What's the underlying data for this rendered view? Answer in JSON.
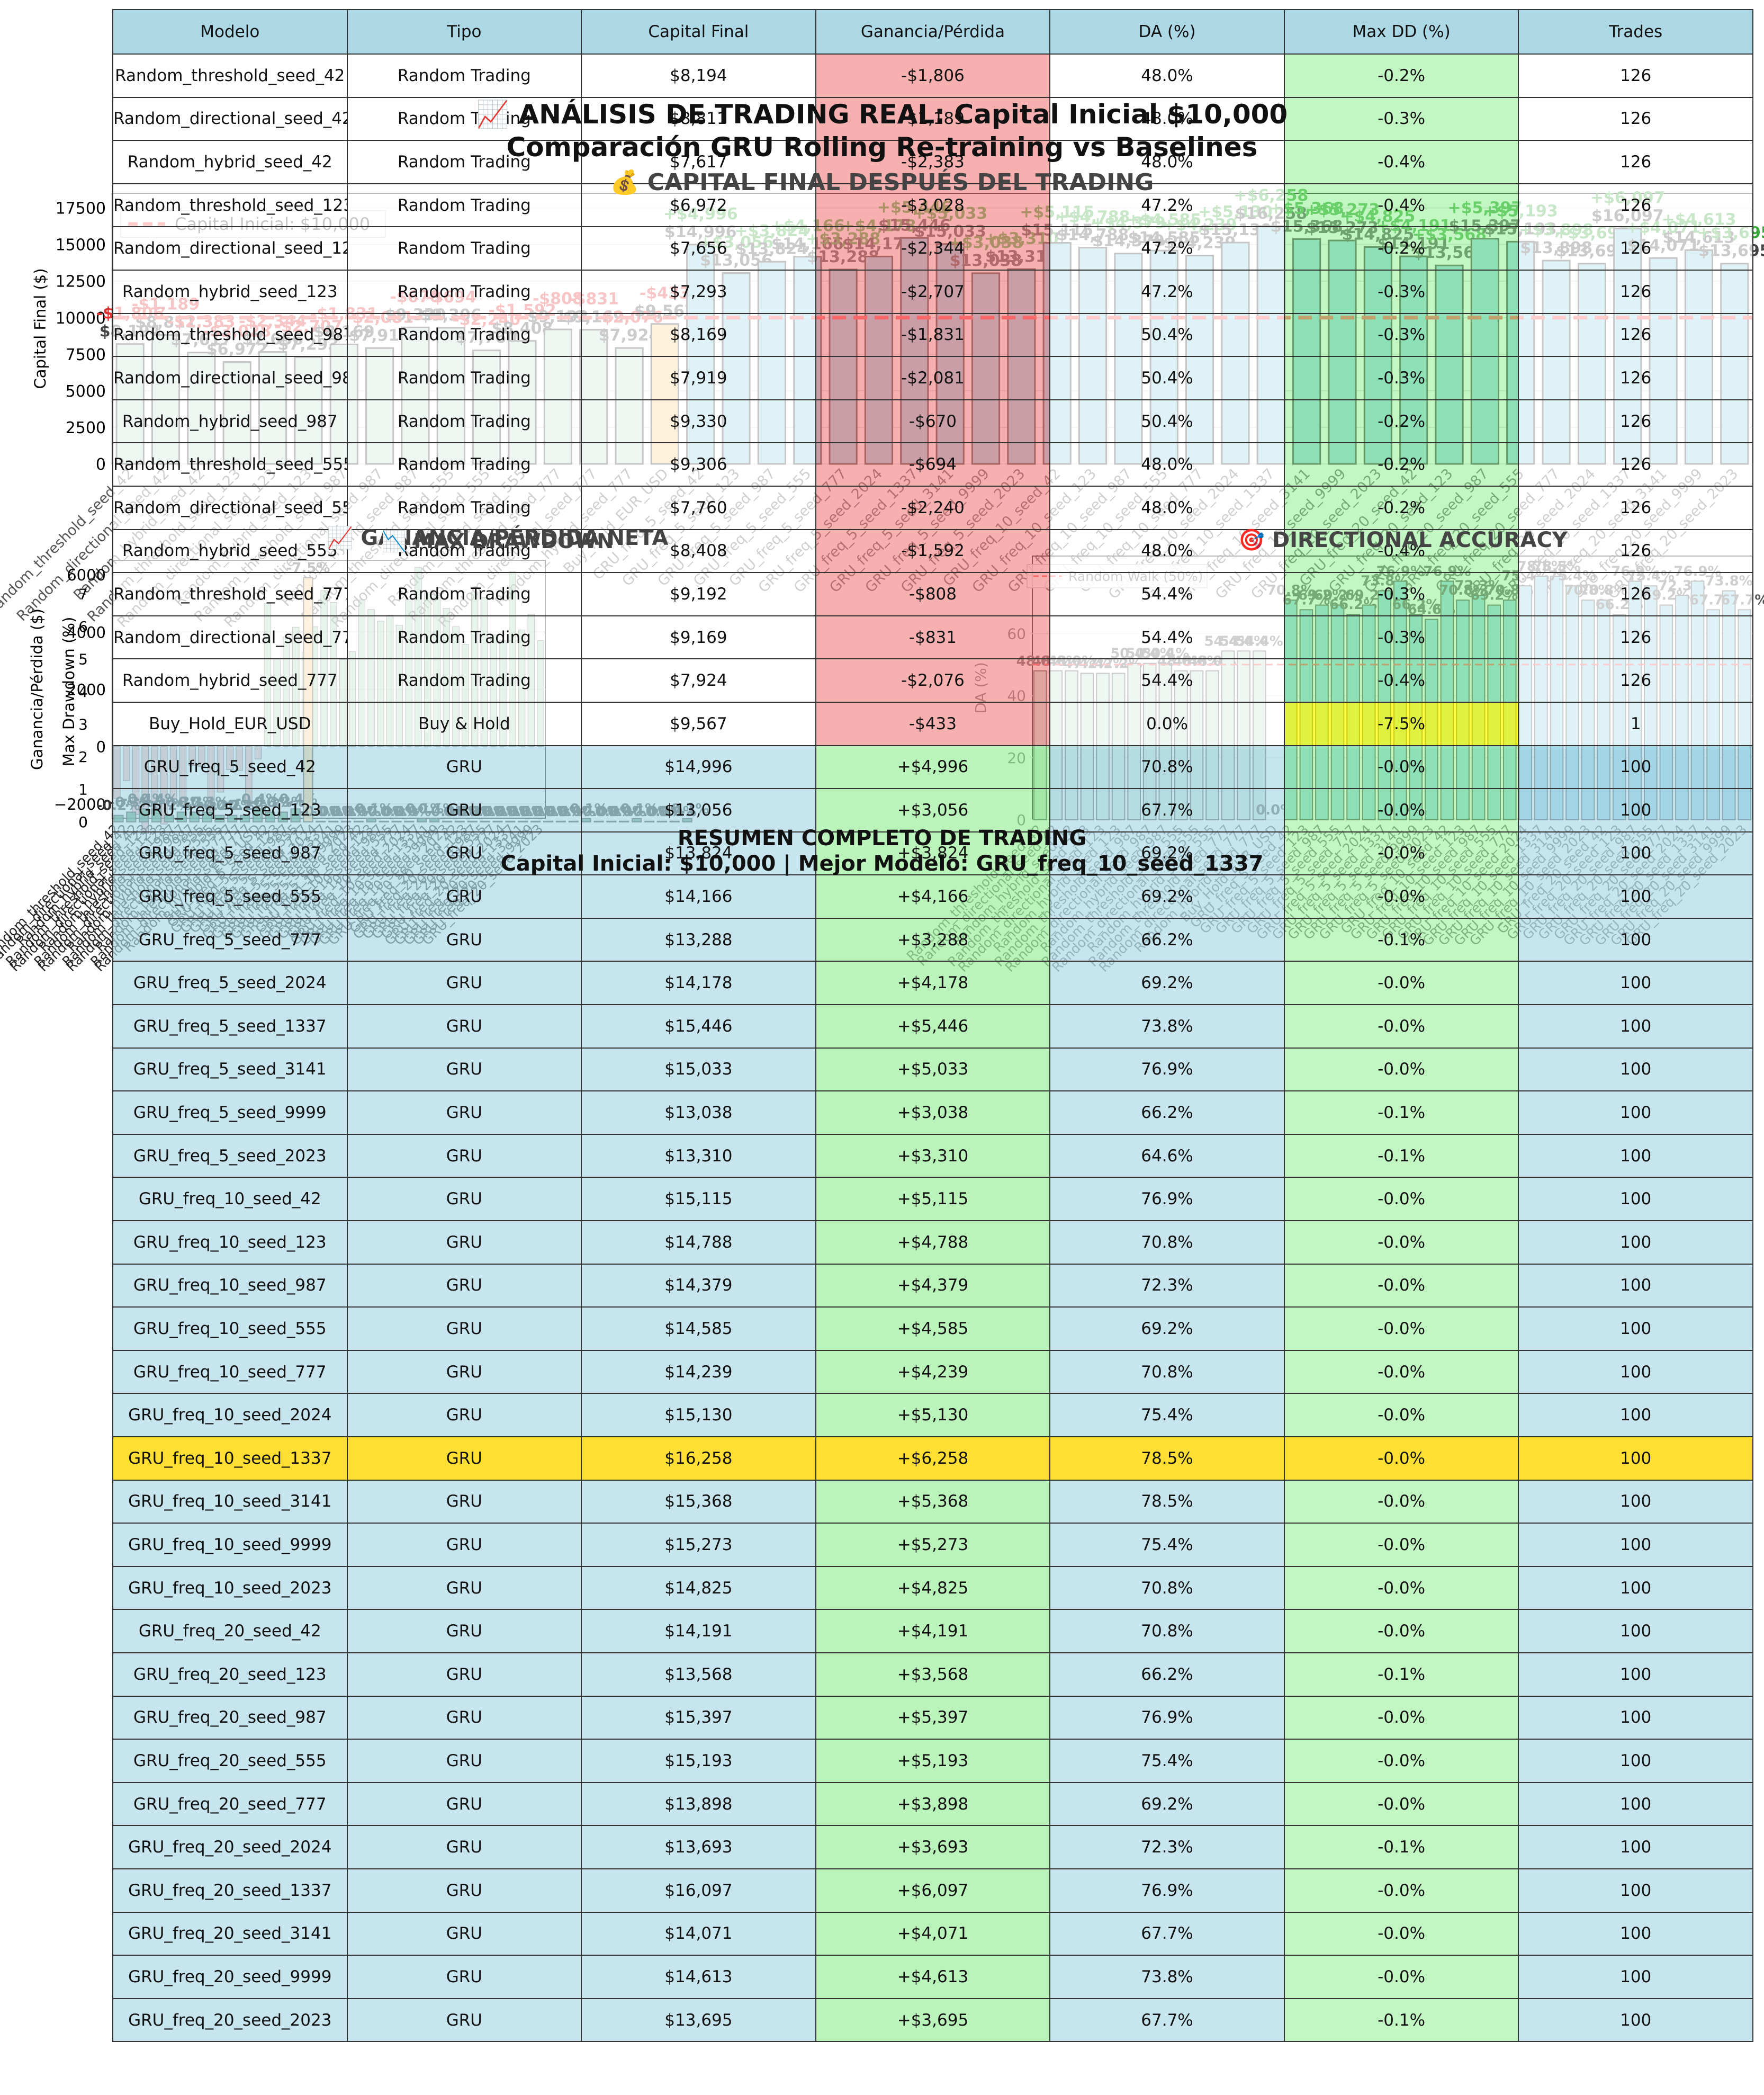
{
  "figure": {
    "title_line1": "📈 ANÁLISIS DE TRADING REAL: Capital Inicial $10,000",
    "title_line2": "Comparación GRU Rolling Re-training vs Baselines",
    "capital_title": "💰 CAPITAL FINAL DESPUÉS DEL TRADING",
    "gain_title": "📈 GANANCIA/PÉRDIDA NETA",
    "dd_title": "📉 MAX DRAWDOWN",
    "da_title": "🎯 DIRECTIONAL ACCURACY",
    "summary_title": "RESUMEN COMPLETO DE TRADING",
    "summary_subtitle": "Capital Inicial: $10,000 | Mejor Modelo: GRU_freq_10_seed_1337"
  },
  "colors": {
    "random": "#c7e3d4",
    "buyhold": "#ffcc80",
    "gru": "#8ccfe6",
    "header": "#add8e6",
    "loss_cell": "#f08080",
    "gain_cell": "#90ee90",
    "best_row": "#ffdf33",
    "capital_line": "#ff4444",
    "gain_bar": "#2e8b57"
  },
  "table": {
    "headers": [
      "Modelo",
      "Tipo",
      "Capital Final",
      "Ganancia/Pérdida",
      "DA (%)",
      "Max DD (%)",
      "Trades"
    ],
    "rows": [
      [
        "Random_threshold_seed_42",
        "Random Trading",
        "$8,194",
        "-$1,806",
        "48.0%",
        "-0.2%",
        "126"
      ],
      [
        "Random_directional_seed_42",
        "Random Trading",
        "$8,811",
        "-$1,189",
        "48.0%",
        "-0.3%",
        "126"
      ],
      [
        "Random_hybrid_seed_42",
        "Random Trading",
        "$7,617",
        "-$2,383",
        "48.0%",
        "-0.4%",
        "126"
      ],
      [
        "Random_threshold_seed_123",
        "Random Trading",
        "$6,972",
        "-$3,028",
        "47.2%",
        "-0.4%",
        "126"
      ],
      [
        "Random_directional_seed_123",
        "Random Trading",
        "$7,656",
        "-$2,344",
        "47.2%",
        "-0.2%",
        "126"
      ],
      [
        "Random_hybrid_seed_123",
        "Random Trading",
        "$7,293",
        "-$2,707",
        "47.2%",
        "-0.3%",
        "126"
      ],
      [
        "Random_threshold_seed_987",
        "Random Trading",
        "$8,169",
        "-$1,831",
        "50.4%",
        "-0.3%",
        "126"
      ],
      [
        "Random_directional_seed_987",
        "Random Trading",
        "$7,919",
        "-$2,081",
        "50.4%",
        "-0.3%",
        "126"
      ],
      [
        "Random_hybrid_seed_987",
        "Random Trading",
        "$9,330",
        "-$670",
        "50.4%",
        "-0.2%",
        "126"
      ],
      [
        "Random_threshold_seed_555",
        "Random Trading",
        "$9,306",
        "-$694",
        "48.0%",
        "-0.2%",
        "126"
      ],
      [
        "Random_directional_seed_555",
        "Random Trading",
        "$7,760",
        "-$2,240",
        "48.0%",
        "-0.2%",
        "126"
      ],
      [
        "Random_hybrid_seed_555",
        "Random Trading",
        "$8,408",
        "-$1,592",
        "48.0%",
        "-0.4%",
        "126"
      ],
      [
        "Random_threshold_seed_777",
        "Random Trading",
        "$9,192",
        "-$808",
        "54.4%",
        "-0.3%",
        "126"
      ],
      [
        "Random_directional_seed_777",
        "Random Trading",
        "$9,169",
        "-$831",
        "54.4%",
        "-0.3%",
        "126"
      ],
      [
        "Random_hybrid_seed_777",
        "Random Trading",
        "$7,924",
        "-$2,076",
        "54.4%",
        "-0.4%",
        "126"
      ],
      [
        "Buy_Hold_EUR_USD",
        "Buy & Hold",
        "$9,567",
        "-$433",
        "0.0%",
        "-7.5%",
        "1"
      ],
      [
        "GRU_freq_5_seed_42",
        "GRU",
        "$14,996",
        "+$4,996",
        "70.8%",
        "-0.0%",
        "100"
      ],
      [
        "GRU_freq_5_seed_123",
        "GRU",
        "$13,056",
        "+$3,056",
        "67.7%",
        "-0.0%",
        "100"
      ],
      [
        "GRU_freq_5_seed_987",
        "GRU",
        "$13,824",
        "+$3,824",
        "69.2%",
        "-0.0%",
        "100"
      ],
      [
        "GRU_freq_5_seed_555",
        "GRU",
        "$14,166",
        "+$4,166",
        "69.2%",
        "-0.0%",
        "100"
      ],
      [
        "GRU_freq_5_seed_777",
        "GRU",
        "$13,288",
        "+$3,288",
        "66.2%",
        "-0.1%",
        "100"
      ],
      [
        "GRU_freq_5_seed_2024",
        "GRU",
        "$14,178",
        "+$4,178",
        "69.2%",
        "-0.0%",
        "100"
      ],
      [
        "GRU_freq_5_seed_1337",
        "GRU",
        "$15,446",
        "+$5,446",
        "73.8%",
        "-0.0%",
        "100"
      ],
      [
        "GRU_freq_5_seed_3141",
        "GRU",
        "$15,033",
        "+$5,033",
        "76.9%",
        "-0.0%",
        "100"
      ],
      [
        "GRU_freq_5_seed_9999",
        "GRU",
        "$13,038",
        "+$3,038",
        "66.2%",
        "-0.1%",
        "100"
      ],
      [
        "GRU_freq_5_seed_2023",
        "GRU",
        "$13,310",
        "+$3,310",
        "64.6%",
        "-0.1%",
        "100"
      ],
      [
        "GRU_freq_10_seed_42",
        "GRU",
        "$15,115",
        "+$5,115",
        "76.9%",
        "-0.0%",
        "100"
      ],
      [
        "GRU_freq_10_seed_123",
        "GRU",
        "$14,788",
        "+$4,788",
        "70.8%",
        "-0.0%",
        "100"
      ],
      [
        "GRU_freq_10_seed_987",
        "GRU",
        "$14,379",
        "+$4,379",
        "72.3%",
        "-0.0%",
        "100"
      ],
      [
        "GRU_freq_10_seed_555",
        "GRU",
        "$14,585",
        "+$4,585",
        "69.2%",
        "-0.0%",
        "100"
      ],
      [
        "GRU_freq_10_seed_777",
        "GRU",
        "$14,239",
        "+$4,239",
        "70.8%",
        "-0.0%",
        "100"
      ],
      [
        "GRU_freq_10_seed_2024",
        "GRU",
        "$15,130",
        "+$5,130",
        "75.4%",
        "-0.0%",
        "100"
      ],
      [
        "GRU_freq_10_seed_1337",
        "GRU",
        "$16,258",
        "+$6,258",
        "78.5%",
        "-0.0%",
        "100"
      ],
      [
        "GRU_freq_10_seed_3141",
        "GRU",
        "$15,368",
        "+$5,368",
        "78.5%",
        "-0.0%",
        "100"
      ],
      [
        "GRU_freq_10_seed_9999",
        "GRU",
        "$15,273",
        "+$5,273",
        "75.4%",
        "-0.0%",
        "100"
      ],
      [
        "GRU_freq_10_seed_2023",
        "GRU",
        "$14,825",
        "+$4,825",
        "70.8%",
        "-0.0%",
        "100"
      ],
      [
        "GRU_freq_20_seed_42",
        "GRU",
        "$14,191",
        "+$4,191",
        "70.8%",
        "-0.0%",
        "100"
      ],
      [
        "GRU_freq_20_seed_123",
        "GRU",
        "$13,568",
        "+$3,568",
        "66.2%",
        "-0.1%",
        "100"
      ],
      [
        "GRU_freq_20_seed_987",
        "GRU",
        "$15,397",
        "+$5,397",
        "76.9%",
        "-0.0%",
        "100"
      ],
      [
        "GRU_freq_20_seed_555",
        "GRU",
        "$15,193",
        "+$5,193",
        "75.4%",
        "-0.0%",
        "100"
      ],
      [
        "GRU_freq_20_seed_777",
        "GRU",
        "$13,898",
        "+$3,898",
        "69.2%",
        "-0.0%",
        "100"
      ],
      [
        "GRU_freq_20_seed_2024",
        "GRU",
        "$13,693",
        "+$3,693",
        "72.3%",
        "-0.1%",
        "100"
      ],
      [
        "GRU_freq_20_seed_1337",
        "GRU",
        "$16,097",
        "+$6,097",
        "76.9%",
        "-0.0%",
        "100"
      ],
      [
        "GRU_freq_20_seed_3141",
        "GRU",
        "$14,071",
        "+$4,071",
        "67.7%",
        "-0.0%",
        "100"
      ],
      [
        "GRU_freq_20_seed_9999",
        "GRU",
        "$14,613",
        "+$4,613",
        "73.8%",
        "-0.0%",
        "100"
      ],
      [
        "GRU_freq_20_seed_2023",
        "GRU",
        "$13,695",
        "+$3,695",
        "67.7%",
        "-0.1%",
        "100"
      ]
    ],
    "best_row_index": 32
  },
  "chart_data": [
    {
      "type": "bar",
      "title": "💰 CAPITAL FINAL DESPUÉS DEL TRADING",
      "ylabel": "Capital Final ($)",
      "ylim": [
        0,
        18500
      ],
      "yticks": [
        0,
        2500,
        5000,
        7500,
        10000,
        12500,
        15000,
        17500
      ],
      "reference_line": {
        "value": 10000,
        "label": "Capital Inicial: $10,000"
      },
      "legend": "top-left",
      "grid": true,
      "categories": [
        "Random_threshold_seed_42",
        "Random_directional_seed_42",
        "Random_hybrid_seed_42",
        "Random_threshold_seed_123",
        "Random_directional_seed_123",
        "Random_hybrid_seed_123",
        "Random_threshold_seed_987",
        "Random_directional_seed_987",
        "Random_hybrid_seed_987",
        "Random_threshold_seed_555",
        "Random_directional_seed_555",
        "Random_hybrid_seed_555",
        "Random_threshold_seed_777",
        "Random_directional_seed_777",
        "Random_hybrid_seed_777",
        "Buy_Hold_EUR_USD",
        "GRU_freq_5_seed_42",
        "GRU_freq_5_seed_123",
        "GRU_freq_5_seed_987",
        "GRU_freq_5_seed_555",
        "GRU_freq_5_seed_777",
        "GRU_freq_5_seed_2024",
        "GRU_freq_5_seed_1337",
        "GRU_freq_5_seed_3141",
        "GRU_freq_5_seed_9999",
        "GRU_freq_5_seed_2023",
        "GRU_freq_10_seed_42",
        "GRU_freq_10_seed_123",
        "GRU_freq_10_seed_987",
        "GRU_freq_10_seed_555",
        "GRU_freq_10_seed_777",
        "GRU_freq_10_seed_2024",
        "GRU_freq_10_seed_1337",
        "GRU_freq_10_seed_3141",
        "GRU_freq_10_seed_9999",
        "GRU_freq_10_seed_2023",
        "GRU_freq_20_seed_42",
        "GRU_freq_20_seed_123",
        "GRU_freq_20_seed_987",
        "GRU_freq_20_seed_555",
        "GRU_freq_20_seed_777",
        "GRU_freq_20_seed_2024",
        "GRU_freq_20_seed_1337",
        "GRU_freq_20_seed_3141",
        "GRU_freq_20_seed_9999",
        "GRU_freq_20_seed_2023"
      ],
      "values": [
        8194,
        8811,
        7617,
        6972,
        7656,
        7293,
        8169,
        7919,
        9330,
        9306,
        7760,
        8408,
        9192,
        9169,
        7924,
        9567,
        14996,
        13056,
        13824,
        14166,
        13288,
        14178,
        15446,
        15033,
        13038,
        13310,
        15115,
        14788,
        14379,
        14585,
        14239,
        15130,
        16258,
        15368,
        15273,
        14825,
        14191,
        13568,
        15397,
        15193,
        13898,
        13693,
        16097,
        14071,
        14613,
        13695
      ],
      "value_labels": [
        "$8,194",
        "$8,811",
        "$7,617",
        "$6,972",
        "$7,656",
        "$7,293",
        "$8,169",
        "$7,919",
        "$9,330",
        "$9,306",
        "$7,760",
        "$8,408",
        "$9,192",
        "$9,169",
        "$7,924",
        "$9,567",
        "$14,996",
        "$13,056",
        "$13,824",
        "$14,166",
        "$13,288",
        "$14,178",
        "$15,446",
        "$15,033",
        "$13,038",
        "$13,310",
        "$15,115",
        "$14,788",
        "$14,379",
        "$14,585",
        "$14,239",
        "$15,130",
        "$16,258",
        "$15,368",
        "$15,273",
        "$14,825",
        "$14,191",
        "$13,568",
        "$15,397",
        "$15,193",
        "$13,898",
        "$13,693",
        "$16,097",
        "$14,071",
        "$14,613",
        "$13,695"
      ],
      "delta_labels": [
        "-$1,806",
        "-$1,189",
        "-$2,383",
        "-$3,028",
        "-$2,344",
        "-$2,707",
        "-$1,831",
        "-$2,081",
        "-$670",
        "-$694",
        "-$2,240",
        "-$1,592",
        "-$808",
        "-$831",
        "-$2,076",
        "-$433",
        "+$4,996",
        "+$3,056",
        "+$3,824",
        "+$4,166",
        "+$3,288",
        "+$4,178",
        "+$5,446",
        "+$5,033",
        "+$3,038",
        "+$3,310",
        "+$5,115",
        "+$4,788",
        "+$4,379",
        "+$4,585",
        "+$4,239",
        "+$5,130",
        "+$6,258",
        "+$5,368",
        "+$5,273",
        "+$4,825",
        "+$4,191",
        "+$3,568",
        "+$5,397",
        "+$5,193",
        "+$3,898",
        "+$3,693",
        "+$6,097",
        "+$4,071",
        "+$4,613",
        "+$3,695"
      ]
    },
    {
      "type": "bar",
      "title": "📈 GANANCIA/PÉRDIDA NETA",
      "ylabel": "Ganancia/Pérdida ($)",
      "yticks": [
        -2000,
        0,
        2000,
        4000,
        6000
      ],
      "values": [
        -1806,
        -1189,
        -2383,
        -3028,
        -2344,
        -2707,
        -1831,
        -2081,
        -670,
        -694,
        -2240,
        -1592,
        -808,
        -831,
        -2076,
        -433,
        4996,
        3056,
        3824,
        4166,
        3288,
        4178,
        5446,
        5033,
        3038,
        3310,
        5115,
        4788,
        4379,
        4585,
        4239,
        5130,
        6258,
        5368,
        5273,
        4825,
        4191,
        3568,
        5397,
        5193,
        3898,
        3693,
        6097,
        4071,
        4613,
        3695
      ]
    },
    {
      "type": "bar",
      "title": "📉 MAX DRAWDOWN",
      "ylabel": "Max Drawdown (%)",
      "ylim": [
        0,
        8
      ],
      "yticks": [
        0,
        1,
        2,
        3,
        4,
        5,
        6,
        7
      ],
      "values": [
        0.2,
        0.3,
        0.4,
        0.4,
        0.2,
        0.3,
        0.3,
        0.3,
        0.2,
        0.2,
        0.2,
        0.4,
        0.3,
        0.3,
        0.4,
        7.5,
        0.0,
        0.0,
        0.0,
        0.0,
        0.1,
        0.0,
        0.0,
        0.0,
        0.1,
        0.1,
        0.0,
        0.0,
        0.0,
        0.0,
        0.0,
        0.0,
        0.0,
        0.0,
        0.0,
        0.0,
        0.0,
        0.1,
        0.0,
        0.0,
        0.0,
        0.1,
        0.0,
        0.0,
        0.0,
        0.1
      ],
      "value_labels": [
        "-0.2%",
        "-0.3%",
        "-0.4%",
        "-0.4%",
        "-0.2%",
        "-0.3%",
        "-0.3%",
        "-0.3%",
        "-0.2%",
        "-0.2%",
        "-0.2%",
        "-0.4%",
        "-0.3%",
        "-0.3%",
        "-0.4%",
        "-7.5%",
        "-0.0%",
        "-0.0%",
        "-0.0%",
        "-0.0%",
        "-0.1%",
        "-0.0%",
        "-0.0%",
        "-0.0%",
        "-0.1%",
        "-0.1%",
        "-0.0%",
        "-0.0%",
        "-0.0%",
        "-0.0%",
        "-0.0%",
        "-0.0%",
        "-0.0%",
        "-0.0%",
        "-0.0%",
        "-0.0%",
        "-0.0%",
        "-0.1%",
        "-0.0%",
        "-0.0%",
        "-0.0%",
        "-0.1%",
        "-0.0%",
        "-0.0%",
        "-0.0%",
        "-0.1%"
      ]
    },
    {
      "type": "bar",
      "title": "🎯 DIRECTIONAL ACCURACY",
      "ylabel": "DA (%)",
      "ylim": [
        0,
        85
      ],
      "yticks": [
        0,
        20,
        40,
        60
      ],
      "reference_line": {
        "value": 50,
        "label": "Random Walk (50%)"
      },
      "values": [
        48.0,
        48.0,
        48.0,
        47.2,
        47.2,
        47.2,
        50.4,
        50.4,
        50.4,
        48.0,
        48.0,
        48.0,
        54.4,
        54.4,
        54.4,
        0.0,
        70.8,
        67.7,
        69.2,
        69.2,
        66.2,
        69.2,
        73.8,
        76.9,
        66.2,
        64.6,
        76.9,
        70.8,
        72.3,
        69.2,
        70.8,
        75.4,
        78.5,
        78.5,
        75.4,
        70.8,
        70.8,
        66.2,
        76.9,
        75.4,
        69.2,
        72.3,
        76.9,
        67.7,
        73.8,
        67.7
      ],
      "value_labels": [
        "48.0%",
        "48.0%",
        "48.0%",
        "47.2%",
        "47.2%",
        "47.2%",
        "50.4%",
        "50.4%",
        "50.4%",
        "48.0%",
        "48.0%",
        "48.0%",
        "54.4%",
        "54.4%",
        "54.4%",
        "0.0%",
        "70.8%",
        "67.7%",
        "69.2%",
        "69.2%",
        "66.2%",
        "69.2%",
        "73.8%",
        "76.9%",
        "66.2%",
        "64.6%",
        "76.9%",
        "70.8%",
        "72.3%",
        "69.2%",
        "70.8%",
        "75.4%",
        "78.5%",
        "78.5%",
        "75.4%",
        "70.8%",
        "70.8%",
        "66.2%",
        "76.9%",
        "75.4%",
        "69.2%",
        "72.3%",
        "76.9%",
        "67.7%",
        "73.8%",
        "67.7%"
      ]
    }
  ]
}
